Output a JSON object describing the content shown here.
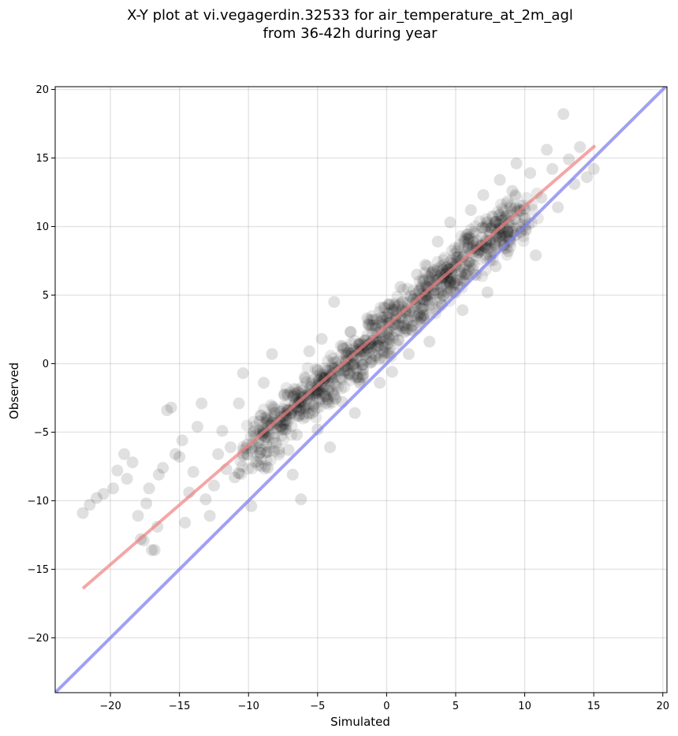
{
  "chart_data": {
    "type": "scatter",
    "title": "X-Y plot at vi.vegagerdin.32533 for air_temperature_at_2m_agl",
    "subtitle": "from 36-42h during year",
    "xlabel": "Simulated",
    "ylabel": "Observed",
    "xlim": [
      -24,
      20.3
    ],
    "ylim": [
      -24,
      20.2
    ],
    "xticks": [
      -20,
      -15,
      -10,
      -5,
      0,
      5,
      10,
      15,
      20
    ],
    "yticks": [
      -20,
      -15,
      -10,
      -5,
      0,
      5,
      10,
      15,
      20
    ],
    "xtick_labels": [
      "−20",
      "−15",
      "−10",
      "−5",
      "0",
      "5",
      "10",
      "15",
      "20"
    ],
    "ytick_labels": [
      "−20",
      "−15",
      "−10",
      "−5",
      "0",
      "5",
      "10",
      "15",
      "20"
    ],
    "grid": true,
    "points": [
      [
        -22,
        -10.9
      ],
      [
        -21.5,
        -10.3
      ],
      [
        -21,
        -9.8
      ],
      [
        -20.5,
        -9.5
      ],
      [
        -19.8,
        -9.1
      ],
      [
        -19.5,
        -7.8
      ],
      [
        -19,
        -6.6
      ],
      [
        -18.8,
        -8.4
      ],
      [
        -18.4,
        -7.2
      ],
      [
        -18,
        -11.1
      ],
      [
        -17.8,
        -12.8
      ],
      [
        -17.6,
        -12.9
      ],
      [
        -17.4,
        -10.2
      ],
      [
        -17.2,
        -9.1
      ],
      [
        -17,
        -13.6
      ],
      [
        -16.8,
        -13.6
      ],
      [
        -16.6,
        -11.9
      ],
      [
        -16.5,
        -8.1
      ],
      [
        -16.2,
        -7.6
      ],
      [
        -15.9,
        -3.4
      ],
      [
        -15.6,
        -3.2
      ],
      [
        -15.3,
        -6.6
      ],
      [
        -15,
        -6.8
      ],
      [
        -14.8,
        -5.6
      ],
      [
        -14.6,
        -11.6
      ],
      [
        -14.3,
        -9.4
      ],
      [
        -14,
        -7.9
      ],
      [
        -13.7,
        -4.6
      ],
      [
        -13.4,
        -2.9
      ],
      [
        -13.1,
        -9.9
      ],
      [
        -12.8,
        -11.1
      ],
      [
        -12.5,
        -8.9
      ],
      [
        -12.2,
        -6.6
      ],
      [
        -11.9,
        -4.9
      ],
      [
        -11.6,
        -7.7
      ],
      [
        -11.3,
        -6.1
      ],
      [
        -11,
        -8.3
      ],
      [
        -10.7,
        -2.9
      ],
      [
        -10.4,
        -0.7
      ],
      [
        -10.1,
        -5.9
      ],
      [
        -9.8,
        -10.4
      ],
      [
        -9.5,
        -7.2
      ],
      [
        -9.2,
        -4.2
      ],
      [
        -8.9,
        -1.4
      ],
      [
        -8.6,
        -7.6
      ],
      [
        -8.3,
        0.7
      ],
      [
        -8,
        -5.8
      ],
      [
        -7.7,
        -3.5
      ],
      [
        -7.4,
        -2.3
      ],
      [
        -7.1,
        -6.3
      ],
      [
        -6.8,
        -8.1
      ],
      [
        -6.5,
        -5.2
      ],
      [
        -6.2,
        -9.9
      ],
      [
        -5.9,
        -1.1
      ],
      [
        -5.6,
        0.9
      ],
      [
        -5.3,
        -3.1
      ],
      [
        -5,
        -4.8
      ],
      [
        -4.7,
        1.8
      ],
      [
        -4.4,
        -2.4
      ],
      [
        -4.1,
        -6.1
      ],
      [
        -3.8,
        4.5
      ],
      [
        -3.5,
        -0.2
      ],
      [
        -3.2,
        -2.8
      ],
      [
        -2.9,
        0.6
      ],
      [
        -2.6,
        2.3
      ],
      [
        -2.3,
        -3.6
      ],
      [
        -2,
        1.4
      ],
      [
        -1.7,
        -0.8
      ],
      [
        -1.4,
        3.3
      ],
      [
        -1.1,
        0.1
      ],
      [
        -0.8,
        2.6
      ],
      [
        -0.5,
        -1.4
      ],
      [
        -0.2,
        4.1
      ],
      [
        0.1,
        1.9
      ],
      [
        0.4,
        -0.6
      ],
      [
        0.7,
        3.2
      ],
      [
        1,
        5.6
      ],
      [
        1.3,
        2.3
      ],
      [
        1.6,
        0.7
      ],
      [
        1.9,
        4.7
      ],
      [
        2.2,
        6.5
      ],
      [
        2.5,
        3.4
      ],
      [
        2.8,
        7.2
      ],
      [
        3.1,
        1.6
      ],
      [
        3.4,
        5.1
      ],
      [
        3.7,
        8.9
      ],
      [
        4,
        4.3
      ],
      [
        4.3,
        6.7
      ],
      [
        4.6,
        10.3
      ],
      [
        4.9,
        5.2
      ],
      [
        5.2,
        7.8
      ],
      [
        5.5,
        3.9
      ],
      [
        5.8,
        9.4
      ],
      [
        6.1,
        11.2
      ],
      [
        6.4,
        6.5
      ],
      [
        6.7,
        8.3
      ],
      [
        7,
        12.3
      ],
      [
        7.3,
        5.2
      ],
      [
        7.6,
        9.9
      ],
      [
        7.9,
        7.1
      ],
      [
        8.2,
        13.4
      ],
      [
        8.5,
        10.5
      ],
      [
        8.8,
        8.2
      ],
      [
        9.1,
        12.6
      ],
      [
        9.4,
        14.6
      ],
      [
        9.7,
        9.6
      ],
      [
        10,
        11.3
      ],
      [
        10.4,
        13.9
      ],
      [
        10.8,
        7.9
      ],
      [
        11.2,
        12.1
      ],
      [
        11.6,
        15.6
      ],
      [
        12,
        14.2
      ],
      [
        12.4,
        11.4
      ],
      [
        12.8,
        18.2
      ],
      [
        13.2,
        14.9
      ],
      [
        13.6,
        13.1
      ],
      [
        14,
        15.8
      ],
      [
        14.5,
        13.6
      ],
      [
        15,
        14.2
      ]
    ],
    "dense_cloud": [
      [
        -10,
        -6.9
      ],
      [
        -8,
        -4.4
      ],
      [
        -6,
        -2.6
      ],
      [
        -4,
        -1
      ],
      [
        -2,
        0.6
      ],
      [
        0,
        2.4
      ],
      [
        2,
        4.2
      ],
      [
        4,
        6
      ],
      [
        6,
        7.8
      ],
      [
        8,
        9.5
      ],
      [
        10,
        11.2
      ]
    ],
    "fit_line": {
      "color": "#f08080",
      "points": [
        [
          -22,
          -16.4
        ],
        [
          15.1,
          15.9
        ]
      ]
    },
    "identity_line": {
      "color": "#8080f0",
      "points": [
        [
          -24,
          -24
        ],
        [
          20.3,
          20.3
        ]
      ]
    }
  }
}
